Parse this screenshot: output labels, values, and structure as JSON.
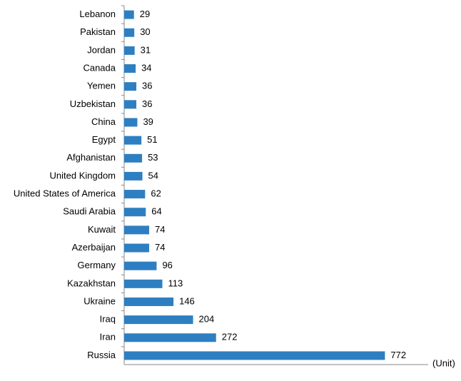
{
  "chart_data": {
    "type": "barh",
    "x_label": "(Unit)",
    "categories": [
      "Lebanon",
      "Pakistan",
      "Jordan",
      "Canada",
      "Yemen",
      "Uzbekistan",
      "China",
      "Egypt",
      "Afghanistan",
      "United Kingdom",
      "United States of America",
      "Saudi Arabia",
      "Kuwait",
      "Azerbaijan",
      "Germany",
      "Kazakhstan",
      "Ukraine",
      "Iraq",
      "Iran",
      "Russia"
    ],
    "values": [
      29,
      30,
      31,
      34,
      36,
      36,
      39,
      51,
      53,
      54,
      62,
      64,
      74,
      74,
      96,
      113,
      146,
      204,
      272,
      772
    ],
    "color": "#2e7fc1",
    "xlim": [
      0,
      900
    ]
  }
}
